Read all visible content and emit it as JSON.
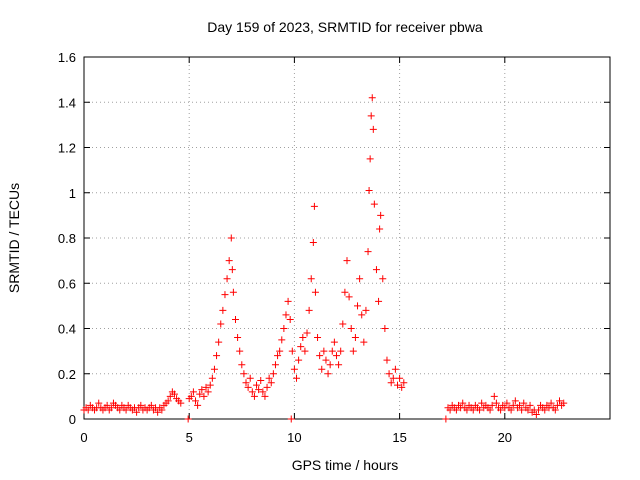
{
  "chart_data": {
    "type": "scatter",
    "title": "Day 159 of 2023, SRMTID for receiver pbwa",
    "xlabel": "GPS time / hours",
    "ylabel": "SRMTID / TECUs",
    "xlim": [
      0,
      25
    ],
    "ylim": [
      0,
      1.6
    ],
    "xticks": [
      0,
      5,
      10,
      15,
      20
    ],
    "yticks": [
      0,
      0.2,
      0.4,
      0.6,
      0.8,
      1,
      1.2,
      1.4,
      1.6
    ],
    "ytick_labels": [
      "0",
      "0.2",
      "0.4",
      "0.6",
      "0.8",
      "1",
      "1.2",
      "1.4",
      "1.6"
    ],
    "grid": true,
    "marker": "+",
    "color": "#ff0000",
    "series": [
      {
        "name": "SRMTID",
        "points": [
          [
            0.0,
            0.04
          ],
          [
            0.1,
            0.05
          ],
          [
            0.2,
            0.04
          ],
          [
            0.3,
            0.06
          ],
          [
            0.4,
            0.05
          ],
          [
            0.5,
            0.04
          ],
          [
            0.6,
            0.05
          ],
          [
            0.7,
            0.07
          ],
          [
            0.8,
            0.05
          ],
          [
            0.9,
            0.04
          ],
          [
            1.0,
            0.05
          ],
          [
            1.1,
            0.06
          ],
          [
            1.2,
            0.04
          ],
          [
            1.3,
            0.05
          ],
          [
            1.4,
            0.07
          ],
          [
            1.5,
            0.06
          ],
          [
            1.6,
            0.05
          ],
          [
            1.7,
            0.04
          ],
          [
            1.8,
            0.06
          ],
          [
            1.9,
            0.05
          ],
          [
            2.0,
            0.04
          ],
          [
            2.1,
            0.06
          ],
          [
            2.2,
            0.05
          ],
          [
            2.3,
            0.04
          ],
          [
            2.4,
            0.05
          ],
          [
            2.5,
            0.03
          ],
          [
            2.6,
            0.05
          ],
          [
            2.7,
            0.06
          ],
          [
            2.8,
            0.04
          ],
          [
            2.9,
            0.05
          ],
          [
            3.0,
            0.04
          ],
          [
            3.1,
            0.05
          ],
          [
            3.2,
            0.06
          ],
          [
            3.3,
            0.04
          ],
          [
            3.4,
            0.05
          ],
          [
            3.5,
            0.03
          ],
          [
            3.6,
            0.05
          ],
          [
            3.7,
            0.04
          ],
          [
            3.8,
            0.06
          ],
          [
            3.9,
            0.07
          ],
          [
            4.0,
            0.08
          ],
          [
            4.1,
            0.1
          ],
          [
            4.2,
            0.12
          ],
          [
            4.3,
            0.11
          ],
          [
            4.4,
            0.09
          ],
          [
            4.5,
            0.08
          ],
          [
            4.6,
            0.07
          ],
          [
            4.95,
            0.0
          ],
          [
            5.0,
            0.09
          ],
          [
            5.1,
            0.1
          ],
          [
            5.2,
            0.12
          ],
          [
            5.3,
            0.08
          ],
          [
            5.4,
            0.06
          ],
          [
            5.5,
            0.11
          ],
          [
            5.6,
            0.13
          ],
          [
            5.7,
            0.1
          ],
          [
            5.8,
            0.14
          ],
          [
            5.9,
            0.12
          ],
          [
            6.0,
            0.15
          ],
          [
            6.1,
            0.18
          ],
          [
            6.2,
            0.22
          ],
          [
            6.3,
            0.28
          ],
          [
            6.4,
            0.34
          ],
          [
            6.5,
            0.42
          ],
          [
            6.6,
            0.48
          ],
          [
            6.7,
            0.55
          ],
          [
            6.8,
            0.62
          ],
          [
            6.9,
            0.7
          ],
          [
            7.0,
            0.8
          ],
          [
            7.05,
            0.66
          ],
          [
            7.1,
            0.56
          ],
          [
            7.2,
            0.44
          ],
          [
            7.3,
            0.36
          ],
          [
            7.4,
            0.3
          ],
          [
            7.5,
            0.24
          ],
          [
            7.6,
            0.2
          ],
          [
            7.7,
            0.16
          ],
          [
            7.8,
            0.14
          ],
          [
            7.9,
            0.18
          ],
          [
            8.0,
            0.12
          ],
          [
            8.1,
            0.1
          ],
          [
            8.2,
            0.15
          ],
          [
            8.3,
            0.13
          ],
          [
            8.4,
            0.17
          ],
          [
            8.5,
            0.12
          ],
          [
            8.6,
            0.1
          ],
          [
            8.7,
            0.14
          ],
          [
            8.8,
            0.18
          ],
          [
            8.9,
            0.16
          ],
          [
            9.0,
            0.2
          ],
          [
            9.1,
            0.24
          ],
          [
            9.2,
            0.28
          ],
          [
            9.3,
            0.3
          ],
          [
            9.4,
            0.35
          ],
          [
            9.5,
            0.4
          ],
          [
            9.6,
            0.46
          ],
          [
            9.7,
            0.52
          ],
          [
            9.8,
            0.44
          ],
          [
            9.85,
            0.0
          ],
          [
            9.9,
            0.3
          ],
          [
            10.0,
            0.22
          ],
          [
            10.1,
            0.18
          ],
          [
            10.2,
            0.26
          ],
          [
            10.3,
            0.32
          ],
          [
            10.4,
            0.36
          ],
          [
            10.5,
            0.3
          ],
          [
            10.6,
            0.38
          ],
          [
            10.7,
            0.48
          ],
          [
            10.8,
            0.62
          ],
          [
            10.9,
            0.78
          ],
          [
            10.95,
            0.94
          ],
          [
            11.0,
            0.56
          ],
          [
            11.1,
            0.36
          ],
          [
            11.2,
            0.28
          ],
          [
            11.3,
            0.22
          ],
          [
            11.4,
            0.3
          ],
          [
            11.5,
            0.26
          ],
          [
            11.6,
            0.2
          ],
          [
            11.7,
            0.24
          ],
          [
            11.8,
            0.3
          ],
          [
            11.9,
            0.34
          ],
          [
            12.0,
            0.28
          ],
          [
            12.1,
            0.24
          ],
          [
            12.2,
            0.3
          ],
          [
            12.3,
            0.42
          ],
          [
            12.4,
            0.56
          ],
          [
            12.5,
            0.7
          ],
          [
            12.6,
            0.54
          ],
          [
            12.7,
            0.4
          ],
          [
            12.8,
            0.3
          ],
          [
            12.9,
            0.36
          ],
          [
            13.0,
            0.5
          ],
          [
            13.1,
            0.62
          ],
          [
            13.2,
            0.46
          ],
          [
            13.3,
            0.34
          ],
          [
            13.4,
            0.48
          ],
          [
            13.5,
            0.74
          ],
          [
            13.55,
            1.01
          ],
          [
            13.6,
            1.15
          ],
          [
            13.65,
            1.34
          ],
          [
            13.7,
            1.42
          ],
          [
            13.75,
            1.28
          ],
          [
            13.8,
            0.95
          ],
          [
            13.9,
            0.66
          ],
          [
            14.0,
            0.52
          ],
          [
            14.05,
            0.84
          ],
          [
            14.1,
            0.9
          ],
          [
            14.2,
            0.62
          ],
          [
            14.3,
            0.4
          ],
          [
            14.4,
            0.26
          ],
          [
            14.5,
            0.2
          ],
          [
            14.6,
            0.16
          ],
          [
            14.7,
            0.18
          ],
          [
            14.8,
            0.22
          ],
          [
            14.9,
            0.15
          ],
          [
            15.0,
            0.18
          ],
          [
            15.1,
            0.14
          ],
          [
            15.2,
            0.16
          ],
          [
            17.2,
            0.0
          ],
          [
            17.3,
            0.05
          ],
          [
            17.4,
            0.04
          ],
          [
            17.5,
            0.06
          ],
          [
            17.6,
            0.05
          ],
          [
            17.7,
            0.04
          ],
          [
            17.8,
            0.06
          ],
          [
            17.9,
            0.05
          ],
          [
            18.0,
            0.07
          ],
          [
            18.1,
            0.05
          ],
          [
            18.2,
            0.04
          ],
          [
            18.3,
            0.06
          ],
          [
            18.4,
            0.05
          ],
          [
            18.5,
            0.04
          ],
          [
            18.6,
            0.06
          ],
          [
            18.7,
            0.05
          ],
          [
            18.8,
            0.04
          ],
          [
            18.9,
            0.07
          ],
          [
            19.0,
            0.05
          ],
          [
            19.1,
            0.06
          ],
          [
            19.2,
            0.05
          ],
          [
            19.3,
            0.04
          ],
          [
            19.4,
            0.06
          ],
          [
            19.5,
            0.1
          ],
          [
            19.6,
            0.07
          ],
          [
            19.7,
            0.05
          ],
          [
            19.8,
            0.04
          ],
          [
            19.9,
            0.06
          ],
          [
            20.0,
            0.05
          ],
          [
            20.1,
            0.07
          ],
          [
            20.2,
            0.05
          ],
          [
            20.3,
            0.04
          ],
          [
            20.4,
            0.06
          ],
          [
            20.5,
            0.08
          ],
          [
            20.6,
            0.05
          ],
          [
            20.7,
            0.06
          ],
          [
            20.8,
            0.04
          ],
          [
            20.9,
            0.07
          ],
          [
            21.0,
            0.05
          ],
          [
            21.1,
            0.04
          ],
          [
            21.2,
            0.06
          ],
          [
            21.3,
            0.03
          ],
          [
            21.4,
            0.04
          ],
          [
            21.5,
            0.02
          ],
          [
            21.6,
            0.04
          ],
          [
            21.7,
            0.06
          ],
          [
            21.8,
            0.05
          ],
          [
            21.9,
            0.04
          ],
          [
            22.0,
            0.06
          ],
          [
            22.1,
            0.05
          ],
          [
            22.2,
            0.07
          ],
          [
            22.3,
            0.05
          ],
          [
            22.4,
            0.04
          ],
          [
            22.5,
            0.06
          ],
          [
            22.6,
            0.08
          ],
          [
            22.7,
            0.06
          ],
          [
            22.8,
            0.07
          ]
        ]
      }
    ]
  }
}
